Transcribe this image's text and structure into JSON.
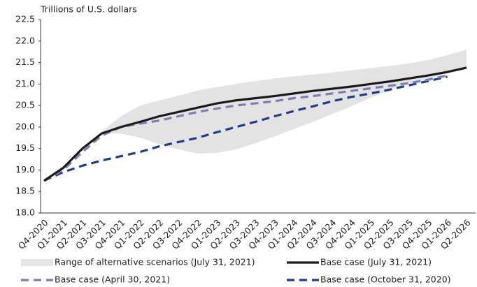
{
  "chart_data": {
    "type": "line",
    "y_label": "Trillions of U.S. dollars",
    "categories": [
      "Q4-2020",
      "Q1-2021",
      "Q2-2021",
      "Q3-2021",
      "Q4-2021",
      "Q1-2022",
      "Q2-2022",
      "Q3-2022",
      "Q4-2022",
      "Q1-2023",
      "Q2-2023",
      "Q3-2023",
      "Q4-2023",
      "Q1-2024",
      "Q2-2024",
      "Q3-2024",
      "Q4-2024",
      "Q1-2025",
      "Q2-2025",
      "Q3-2025",
      "Q4-2025",
      "Q1-2026",
      "Q2-2026"
    ],
    "ylim": [
      18.0,
      22.5
    ],
    "yticks": [
      {
        "value": 18.0,
        "label": "18.0"
      },
      18.5,
      {
        "value": 19.0,
        "label": "19.0"
      },
      19.5,
      {
        "value": 20.0,
        "label": "20.0"
      },
      20.5,
      {
        "value": 21.0,
        "label": "21.0"
      },
      21.5,
      {
        "value": 22.0,
        "label": "22.0"
      },
      22.5
    ],
    "range": {
      "name": "Range of alternative scenarios (July 31, 2021)",
      "color": "#e3e3e4",
      "low": [
        null,
        null,
        null,
        19.85,
        19.85,
        19.75,
        19.6,
        19.48,
        19.38,
        19.4,
        19.48,
        19.62,
        19.78,
        19.95,
        20.12,
        20.3,
        20.48,
        20.68,
        20.85,
        21.0,
        21.12,
        21.25,
        21.38
      ],
      "high": [
        null,
        null,
        null,
        19.9,
        20.25,
        20.5,
        20.62,
        20.73,
        20.85,
        20.93,
        21.0,
        21.07,
        21.13,
        21.18,
        21.22,
        21.27,
        21.32,
        21.37,
        21.42,
        21.48,
        21.56,
        21.67,
        21.8
      ]
    },
    "series": [
      {
        "name": "Base case (July 31, 2021)",
        "color": "#1a1a1a",
        "dashed": false,
        "values": [
          18.75,
          19.05,
          19.5,
          19.85,
          20.0,
          20.12,
          20.25,
          20.35,
          20.45,
          20.55,
          20.62,
          20.67,
          20.72,
          20.78,
          20.84,
          20.89,
          20.94,
          21.0,
          21.06,
          21.13,
          21.2,
          21.28,
          21.38
        ]
      },
      {
        "name": "Base case (April 30, 2021)",
        "color": "#7b7fb5",
        "dashed": true,
        "values": [
          18.75,
          19.0,
          19.42,
          19.8,
          20.0,
          20.08,
          20.15,
          20.25,
          20.35,
          20.43,
          20.5,
          20.55,
          20.6,
          20.67,
          20.72,
          20.78,
          20.84,
          20.9,
          20.96,
          21.02,
          21.1,
          21.2,
          null
        ]
      },
      {
        "name": "Base case (October 31, 2020)",
        "color": "#1d3f87",
        "dashed": true,
        "values": [
          18.75,
          18.95,
          19.1,
          19.22,
          19.32,
          19.42,
          19.55,
          19.65,
          19.75,
          19.88,
          20.0,
          20.12,
          20.25,
          20.37,
          20.48,
          20.6,
          20.7,
          20.78,
          20.87,
          20.97,
          21.07,
          21.17,
          null
        ]
      }
    ]
  }
}
